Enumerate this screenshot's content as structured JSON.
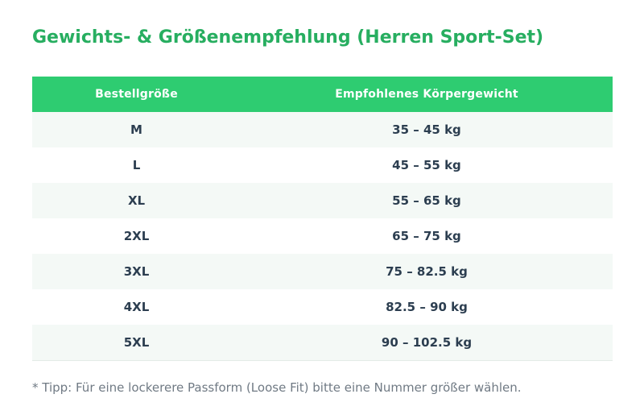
{
  "title": "Gewichts- & Größenempfehlung (Herren Sport-Set)",
  "table": {
    "headers": {
      "size": "Bestellgröße",
      "weight": "Empfohlenes Körpergewicht"
    },
    "rows": [
      {
        "size": "M",
        "weight": "35 – 45 kg"
      },
      {
        "size": "L",
        "weight": "45 – 55 kg"
      },
      {
        "size": "XL",
        "weight": "55 – 65 kg"
      },
      {
        "size": "2XL",
        "weight": "65 – 75 kg"
      },
      {
        "size": "3XL",
        "weight": "75 – 82.5 kg"
      },
      {
        "size": "4XL",
        "weight": "82.5 – 90 kg"
      },
      {
        "size": "5XL",
        "weight": "90 – 102.5 kg"
      }
    ]
  },
  "note": "* Tipp: Für eine lockerere Passform (Loose Fit) bitte eine Nummer größer wählen.",
  "colors": {
    "accent": "#27ae60",
    "header_bg": "#2ecc71",
    "row_alt": "#f4f9f6",
    "text": "#2c3e50",
    "note": "#707a84"
  }
}
